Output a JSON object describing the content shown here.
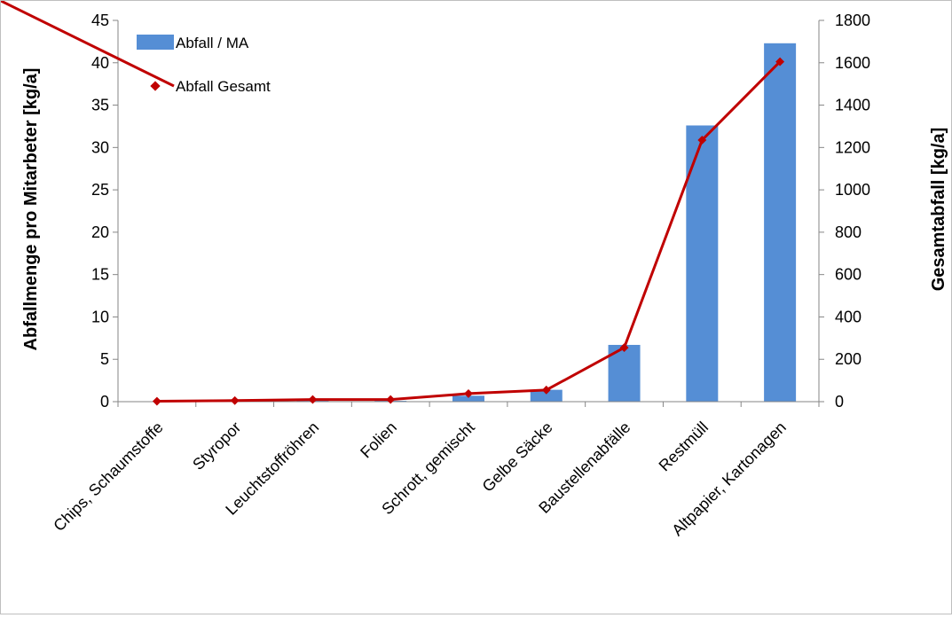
{
  "chart_data": {
    "type": "bar+line",
    "categories": [
      "Chips, Schaumstoffe",
      "Styropor",
      "Leuchtstoffröhren",
      "Folien",
      "Schrott, gemischt",
      "Gelbe Säcke",
      "Baustellenabfälle",
      "Restmüll",
      "Altpapier, Kartonagen"
    ],
    "series": [
      {
        "name": "Abfall / MA",
        "type": "bar",
        "axis": "left",
        "color": "#558ed5",
        "values": [
          0,
          0.05,
          0.1,
          0.1,
          0.7,
          1.4,
          6.7,
          32.6,
          42.3
        ]
      },
      {
        "name": "Abfall Gesamt",
        "type": "line",
        "axis": "right",
        "color": "#c00000",
        "values": [
          2,
          5,
          10,
          10,
          38,
          55,
          255,
          1235,
          1605
        ]
      }
    ],
    "ylabel": "Abfallmenge pro Mitarbeter [kg/a]",
    "y2label": "Gesamtabfall [kg/a]",
    "ylim": [
      0,
      45
    ],
    "y2lim": [
      0,
      1800
    ],
    "yticks": [
      "0",
      "5",
      "10",
      "15",
      "20",
      "25",
      "30",
      "35",
      "40",
      "45"
    ],
    "y2ticks": [
      "0",
      "200",
      "400",
      "600",
      "800",
      "1000",
      "1200",
      "1400",
      "1600",
      "1800"
    ],
    "grid": false,
    "legend_position": "top-left"
  }
}
